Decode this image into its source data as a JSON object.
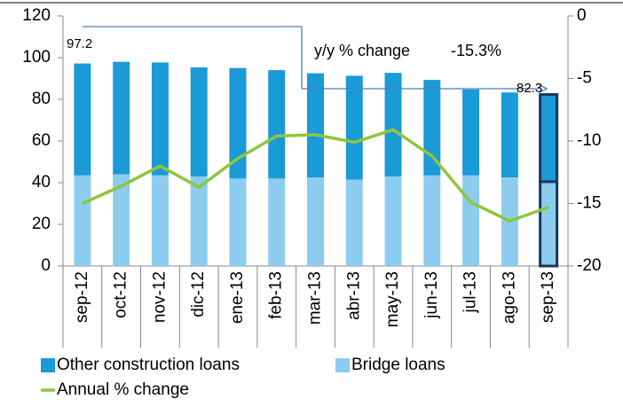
{
  "chart_data": {
    "type": "bar",
    "categories": [
      "sep-12",
      "oct-12",
      "nov-12",
      "dic-12",
      "ene-13",
      "feb-13",
      "mar-13",
      "abr-13",
      "may-13",
      "jun-13",
      "jul-13",
      "ago-13",
      "sep-13"
    ],
    "series": [
      {
        "name": "Other construction loans",
        "color": "#1a9ad6",
        "values": [
          53.7,
          54,
          54.2,
          52.3,
          53,
          52,
          50,
          49.8,
          49.7,
          45.8,
          41.2,
          40.8,
          41.8
        ]
      },
      {
        "name": "Bridge loans",
        "color": "#8ccdef",
        "values": [
          43.5,
          44,
          43.5,
          43,
          42,
          42,
          42.5,
          41.5,
          43,
          43.5,
          43.5,
          42.5,
          40.5
        ]
      },
      {
        "name": "Annual % change",
        "color": "#8dc63f",
        "type": "line",
        "axis": "y2",
        "values": [
          -15.0,
          -13.6,
          -12.0,
          -13.7,
          -11.4,
          -9.6,
          -9.5,
          -10.1,
          -9.1,
          -11.2,
          -14.9,
          -16.4,
          -15.3
        ]
      }
    ],
    "ylim": [
      0,
      120
    ],
    "yticks": [
      0,
      20,
      40,
      60,
      80,
      100,
      120
    ],
    "y2lim": [
      -20,
      0
    ],
    "y2ticks": [
      0,
      -5,
      -10,
      -15,
      -20
    ],
    "annotations": [
      "97.2",
      "y/y % change",
      "-15.3%",
      "82.3"
    ],
    "stacked": true
  }
}
